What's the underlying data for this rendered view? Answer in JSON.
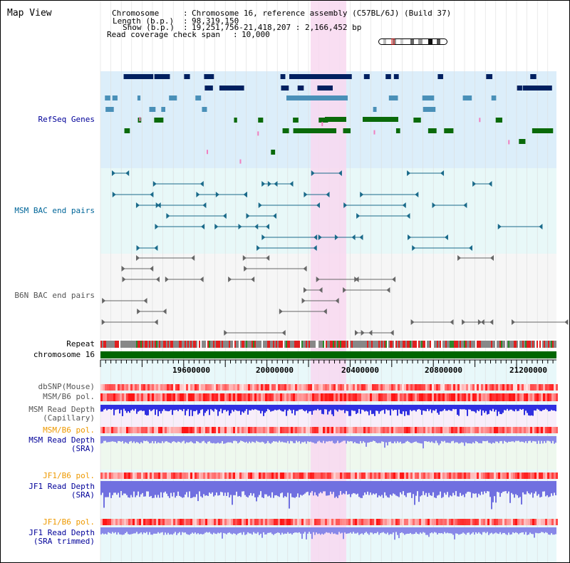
{
  "view_title": "Map View",
  "header": {
    "chromosome_key": "Chromosome",
    "chromosome_value": "Chromosome 16, reference assembly (C57BL/6J) (Build 37)",
    "length_key": "Length (b.p.)",
    "length_value": "98,319,150",
    "show_key": "Show (b.p.)",
    "show_value": "19,251,756-21,418,207 : 2,166,452 bp",
    "coverage_key": "Read coverage check span",
    "coverage_value": "10,000"
  },
  "tracks": {
    "refseq": "RefSeq Genes",
    "msm_bac": "MSM BAC end pairs",
    "b6n_bac": "B6N BAC end pairs",
    "repeat": "Repeat",
    "chromosome": "chromosome 16",
    "dbsnp": "dbSNP(Mouse)",
    "msm_pol_1": "MSM/B6 pol.",
    "msm_depth_cap_1": "MSM Read Depth",
    "msm_depth_cap_2": "(Capillary)",
    "msm_pol_2": "MSM/B6 pol.",
    "msm_depth_sra_1": "MSM Read Depth",
    "msm_depth_sra_2": "(SRA)",
    "jf1_pol_1": "JF1/B6 pol.",
    "jf1_depth_sra_1": "JF1 Read Depth",
    "jf1_depth_sra_2": "(SRA)",
    "jf1_pol_2": "JF1/B6 pol.",
    "jf1_depth_trim_1": "JF1 Read Depth",
    "jf1_depth_trim_2": "(SRA trimmed)"
  },
  "axis": {
    "ticks": [
      "19600000",
      "20000000",
      "20400000",
      "20800000",
      "21200000"
    ]
  },
  "colors": {
    "refseq_label": "#000099",
    "msm_bac_label": "#006699",
    "b6n_bac_label": "#555555",
    "orange_label": "#ee9900",
    "blue_label": "#000099",
    "highlight": "#f8d8f0",
    "gene_dark": "#002060",
    "gene_mid": "#4a90b8",
    "gene_green": "#0a6a0a",
    "chromosome_bar": "#006600"
  }
}
